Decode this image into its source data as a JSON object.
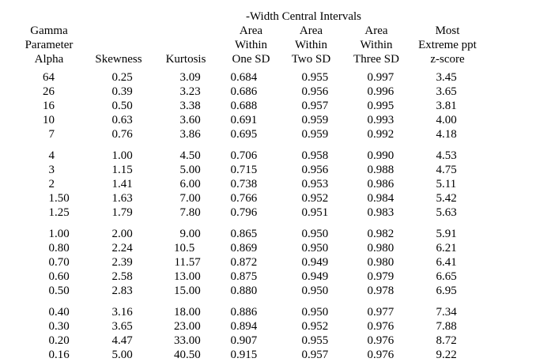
{
  "table": {
    "span_title": "-Width Central Intervals",
    "column_headers": [
      [
        "Gamma",
        "Parameter",
        "Alpha"
      ],
      [
        "",
        "",
        "Skewness"
      ],
      [
        "",
        "",
        "Kurtosis"
      ],
      [
        "Area",
        "Within",
        "One SD"
      ],
      [
        "Area",
        "Within",
        "Two SD"
      ],
      [
        "Area",
        "Within",
        "Three SD"
      ],
      [
        "Most",
        "Extreme ppt",
        "z-score"
      ]
    ],
    "row_groups": [
      [
        [
          "64",
          "0.25",
          "3.09",
          "0.684",
          "0.955",
          "0.997",
          "3.45"
        ],
        [
          "26",
          "0.39",
          "3.23",
          "0.686",
          "0.956",
          "0.996",
          "3.65"
        ],
        [
          "16",
          "0.50",
          "3.38",
          "0.688",
          "0.957",
          "0.995",
          "3.81"
        ],
        [
          "10",
          "0.63",
          "3.60",
          "0.691",
          "0.959",
          "0.993",
          "4.00"
        ],
        [
          "7",
          "0.76",
          "3.86",
          "0.695",
          "0.959",
          "0.992",
          "4.18"
        ]
      ],
      [
        [
          "4",
          "1.00",
          "4.50",
          "0.706",
          "0.958",
          "0.990",
          "4.53"
        ],
        [
          "3",
          "1.15",
          "5.00",
          "0.715",
          "0.956",
          "0.988",
          "4.75"
        ],
        [
          "2",
          "1.41",
          "6.00",
          "0.738",
          "0.953",
          "0.986",
          "5.11"
        ],
        [
          "1.50",
          "1.63",
          "7.00",
          "0.766",
          "0.952",
          "0.984",
          "5.42"
        ],
        [
          "1.25",
          "1.79",
          "7.80",
          "0.796",
          "0.951",
          "0.983",
          "5.63"
        ]
      ],
      [
        [
          "1.00",
          "2.00",
          "9.00",
          "0.865",
          "0.950",
          "0.982",
          "5.91"
        ],
        [
          "0.80",
          "2.24",
          "10.5",
          "0.869",
          "0.950",
          "0.980",
          "6.21"
        ],
        [
          "0.70",
          "2.39",
          "11.57",
          "0.872",
          "0.949",
          "0.980",
          "6.41"
        ],
        [
          "0.60",
          "2.58",
          "13.00",
          "0.875",
          "0.949",
          "0.979",
          "6.65"
        ],
        [
          "0.50",
          "2.83",
          "15.00",
          "0.880",
          "0.950",
          "0.978",
          "6.95"
        ]
      ],
      [
        [
          "0.40",
          "3.16",
          "18.00",
          "0.886",
          "0.950",
          "0.977",
          "7.34"
        ],
        [
          "0.30",
          "3.65",
          "23.00",
          "0.894",
          "0.952",
          "0.976",
          "7.88"
        ],
        [
          "0.20",
          "4.47",
          "33.00",
          "0.907",
          "0.955",
          "0.976",
          "8.72"
        ],
        [
          "0.16",
          "5.00",
          "40.50",
          "0.915",
          "0.957",
          "0.976",
          "9.22"
        ]
      ]
    ]
  },
  "colors": {
    "text": "#000000",
    "background": "#ffffff"
  }
}
